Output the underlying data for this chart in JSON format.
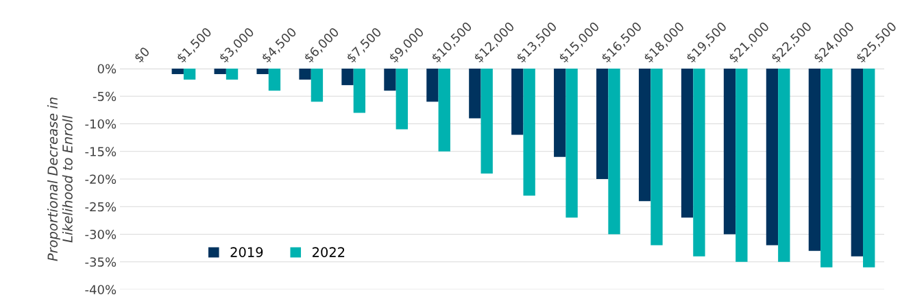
{
  "chart_data": {
    "type": "bar",
    "ylabel": "Proportional Decrease in\nLikelihood to Enroll",
    "categories": [
      "$0",
      "$1,500",
      "$3,000",
      "$4,500",
      "$6,000",
      "$7,500",
      "$9,000",
      "$10,500",
      "$12,000",
      "$13,500",
      "$15,000",
      "$16,500",
      "$18,000",
      "$19,500",
      "$21,000",
      "$22,500",
      "$24,000",
      "$25,500"
    ],
    "series": [
      {
        "name": "2019",
        "color": "#00335f",
        "values": [
          0,
          -1,
          -1,
          -1,
          -2,
          -3,
          -4,
          -6,
          -9,
          -12,
          -16,
          -20,
          -24,
          -27,
          -30,
          -32,
          -33,
          -34
        ]
      },
      {
        "name": "2022",
        "color": "#00b2b0",
        "values": [
          0,
          -2,
          -2,
          -4,
          -6,
          -8,
          -11,
          -15,
          -19,
          -23,
          -27,
          -30,
          -32,
          -34,
          -35,
          -35,
          -36,
          -36
        ]
      }
    ],
    "ylim": [
      -40,
      0
    ],
    "yticks": [
      {
        "value": 0,
        "label": "0%"
      },
      {
        "value": -5,
        "label": "-5%"
      },
      {
        "value": -10,
        "label": "-10%"
      },
      {
        "value": -15,
        "label": "-15%"
      },
      {
        "value": -20,
        "label": "-20%"
      },
      {
        "value": -25,
        "label": "-25%"
      },
      {
        "value": -30,
        "label": "-30%"
      },
      {
        "value": -35,
        "label": "-35%"
      },
      {
        "value": -40,
        "label": "-40%"
      }
    ],
    "grid": "y",
    "legend": "bottom left"
  }
}
